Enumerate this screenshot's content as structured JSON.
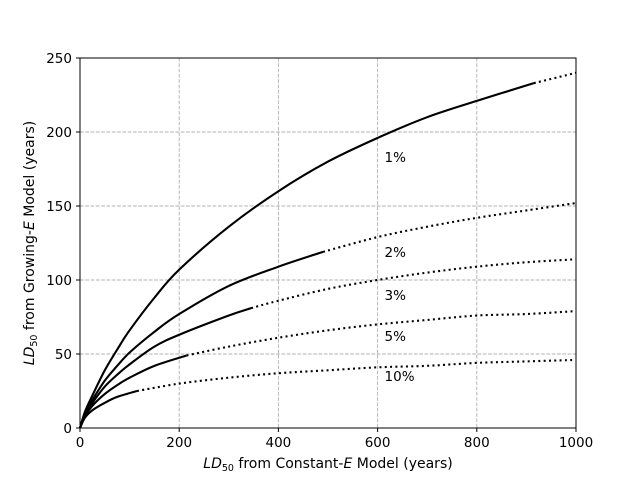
{
  "chart_data": {
    "type": "line",
    "title": "",
    "xlabel": {
      "main": "LD",
      "sub": "50",
      "mid": " from Constant-",
      "italic": "E",
      "tail": " Model (years)"
    },
    "ylabel": {
      "main": "LD",
      "sub": "50",
      "mid": " from Growing-",
      "italic": "E",
      "tail": " Model (years)"
    },
    "xlim": [
      0,
      1000
    ],
    "ylim": [
      0,
      250
    ],
    "xticks": [
      0,
      200,
      400,
      600,
      800,
      1000
    ],
    "yticks": [
      0,
      50,
      100,
      150,
      200,
      250
    ],
    "xtick_labels": [
      "0",
      "200",
      "400",
      "600",
      "800",
      "1000"
    ],
    "ytick_labels": [
      "0",
      "50",
      "100",
      "150",
      "200",
      "250"
    ],
    "grid": true,
    "legend": "none",
    "series": [
      {
        "label": "1%",
        "label_at": [
          620,
          183
        ],
        "solid_until": 915,
        "x": [
          0,
          10,
          25,
          50,
          75,
          100,
          150,
          200,
          300,
          400,
          500,
          600,
          700,
          800,
          915,
          1000
        ],
        "y": [
          0,
          11,
          22,
          39,
          53,
          66,
          88,
          107,
          136,
          160,
          180,
          196,
          210,
          221,
          233,
          240
        ]
      },
      {
        "label": "2%",
        "label_at": [
          620,
          119
        ],
        "solid_until": 490,
        "x": [
          0,
          10,
          25,
          50,
          75,
          100,
          150,
          200,
          300,
          400,
          490,
          600,
          700,
          800,
          900,
          1000
        ],
        "y": [
          0,
          10,
          19,
          32,
          42,
          51,
          65,
          77,
          96,
          109,
          119,
          129,
          136,
          142,
          147,
          152
        ]
      },
      {
        "label": "3%",
        "label_at": [
          620,
          90
        ],
        "solid_until": 345,
        "x": [
          0,
          10,
          25,
          50,
          75,
          100,
          150,
          200,
          300,
          345,
          400,
          500,
          600,
          700,
          800,
          900,
          1000
        ],
        "y": [
          0,
          9,
          17,
          28,
          36,
          43,
          55,
          63,
          76,
          81,
          86,
          94,
          100,
          105,
          109,
          112,
          114
        ]
      },
      {
        "label": "5%",
        "label_at": [
          620,
          62
        ],
        "solid_until": 215,
        "x": [
          0,
          10,
          25,
          50,
          75,
          100,
          150,
          215,
          300,
          400,
          500,
          600,
          700,
          800,
          900,
          1000
        ],
        "y": [
          0,
          8,
          15,
          23,
          29,
          34,
          42,
          49,
          55,
          61,
          66,
          70,
          73,
          76,
          77,
          79
        ]
      },
      {
        "label": "10%",
        "label_at": [
          620,
          35
        ],
        "solid_until": 115,
        "x": [
          0,
          10,
          25,
          50,
          75,
          115,
          200,
          300,
          400,
          500,
          600,
          700,
          800,
          900,
          1000
        ],
        "y": [
          0,
          7,
          12,
          17,
          21,
          25,
          30,
          34,
          37,
          39,
          41,
          42,
          44,
          45,
          46
        ]
      }
    ]
  }
}
